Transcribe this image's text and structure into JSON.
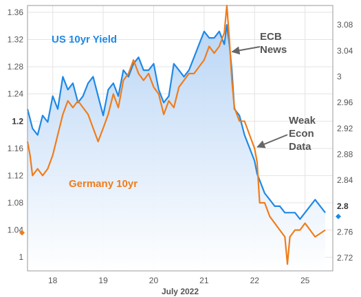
{
  "chart_data": {
    "type": "line",
    "title": "",
    "xlabel": "July 2022",
    "x_tick_labels": [
      "18",
      "19",
      "20",
      "21",
      "22",
      "25"
    ],
    "left_axis": {
      "ylim": [
        0.98,
        1.37
      ],
      "ticks": [
        "1",
        "1.04",
        "1.08",
        "1.12",
        "1.16",
        "1.2",
        "1.24",
        "1.28",
        "1.32",
        "1.36"
      ],
      "bold_tick": "1.2",
      "end_marker_value": 1.036
    },
    "right_axis": {
      "ylim": [
        2.7,
        3.11
      ],
      "ticks": [
        "2.72",
        "2.76",
        "2.8",
        "2.84",
        "2.88",
        "2.92",
        "2.96",
        "3",
        "3.04",
        "3.08"
      ],
      "bold_tick": "2.8",
      "end_marker_value": 2.784
    },
    "grid": true,
    "series": [
      {
        "name": "US 10yr Yield",
        "axis": "right",
        "color": "#1e88e5",
        "fill": true,
        "x": [
          17.5,
          17.6,
          17.7,
          17.8,
          17.9,
          18.0,
          18.1,
          18.2,
          18.3,
          18.4,
          18.5,
          18.6,
          18.7,
          18.8,
          18.9,
          19.0,
          19.1,
          19.2,
          19.3,
          19.4,
          19.5,
          19.6,
          19.7,
          19.8,
          19.9,
          20.0,
          20.1,
          20.2,
          20.3,
          20.4,
          20.5,
          20.6,
          20.7,
          20.8,
          20.9,
          21.0,
          21.1,
          21.2,
          21.3,
          21.4,
          21.45,
          21.5,
          21.55,
          21.6,
          21.7,
          21.8,
          21.9,
          22.0,
          22.05,
          22.1,
          22.2,
          22.3,
          22.4,
          22.5,
          22.6,
          22.7,
          22.8,
          22.9,
          23.0,
          23.2,
          23.4
        ],
        "values": [
          2.95,
          2.92,
          2.91,
          2.94,
          2.93,
          2.97,
          2.95,
          3.0,
          2.98,
          2.99,
          2.96,
          2.97,
          2.99,
          3.0,
          2.97,
          2.94,
          2.98,
          2.99,
          2.97,
          3.01,
          3.0,
          3.02,
          3.03,
          3.01,
          3.01,
          3.02,
          2.98,
          2.96,
          2.97,
          3.02,
          3.01,
          3.0,
          3.01,
          3.03,
          3.05,
          3.07,
          3.06,
          3.06,
          3.07,
          3.05,
          3.08,
          3.05,
          3.01,
          2.95,
          2.94,
          2.91,
          2.89,
          2.87,
          2.85,
          2.84,
          2.82,
          2.81,
          2.8,
          2.8,
          2.79,
          2.79,
          2.79,
          2.78,
          2.79,
          2.81,
          2.79
        ]
      },
      {
        "name": "Germany 10yr",
        "axis": "left",
        "color": "#f07c1a",
        "fill": false,
        "x": [
          17.5,
          17.55,
          17.6,
          17.7,
          17.8,
          17.9,
          18.0,
          18.1,
          18.2,
          18.3,
          18.4,
          18.5,
          18.6,
          18.7,
          18.8,
          18.9,
          19.0,
          19.1,
          19.2,
          19.3,
          19.4,
          19.5,
          19.6,
          19.7,
          19.8,
          19.9,
          20.0,
          20.1,
          20.2,
          20.3,
          20.4,
          20.5,
          20.6,
          20.7,
          20.8,
          20.9,
          21.0,
          21.1,
          21.2,
          21.3,
          21.4,
          21.45,
          21.5,
          21.55,
          21.6,
          21.7,
          21.8,
          21.9,
          22.0,
          22.05,
          22.1,
          22.2,
          22.3,
          22.4,
          22.5,
          22.6,
          22.65,
          22.7,
          22.8,
          22.9,
          23.0,
          23.2,
          23.4
        ],
        "values": [
          1.17,
          1.15,
          1.12,
          1.13,
          1.12,
          1.13,
          1.15,
          1.18,
          1.21,
          1.23,
          1.22,
          1.23,
          1.22,
          1.21,
          1.19,
          1.17,
          1.19,
          1.21,
          1.24,
          1.22,
          1.26,
          1.27,
          1.29,
          1.27,
          1.26,
          1.27,
          1.25,
          1.24,
          1.21,
          1.23,
          1.22,
          1.25,
          1.26,
          1.27,
          1.27,
          1.28,
          1.29,
          1.31,
          1.3,
          1.31,
          1.33,
          1.37,
          1.32,
          1.26,
          1.22,
          1.2,
          1.2,
          1.18,
          1.16,
          1.14,
          1.08,
          1.08,
          1.06,
          1.05,
          1.04,
          1.03,
          0.99,
          1.03,
          1.04,
          1.04,
          1.05,
          1.03,
          1.04
        ]
      }
    ],
    "annotations": [
      {
        "lines": [
          "ECB",
          "News"
        ],
        "target_x": 21.5,
        "target_y_left": 1.3
      },
      {
        "lines": [
          "Weak",
          "Econ",
          "Data"
        ],
        "target_x": 22.0,
        "target_y_left": 1.16
      }
    ]
  }
}
